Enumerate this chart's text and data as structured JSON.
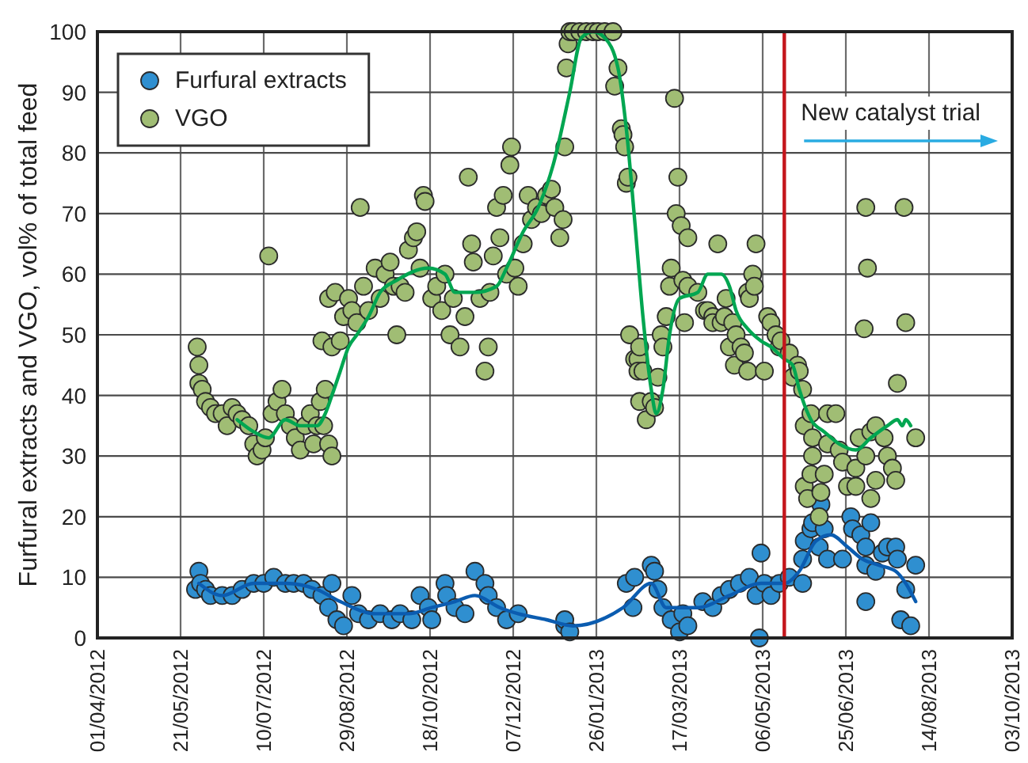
{
  "chart_data": {
    "type": "scatter",
    "ylabel": "Furfural extracts and VGO, vol% of total feed",
    "xlim": [
      "2012-04-01",
      "2013-10-03"
    ],
    "xticks": [
      {
        "value": "2012-04-01",
        "label": "01/04/2012"
      },
      {
        "value": "2012-05-21",
        "label": "21/05/2012"
      },
      {
        "value": "2012-07-10",
        "label": "10/07/2012"
      },
      {
        "value": "2012-08-29",
        "label": "29/08/2012"
      },
      {
        "value": "2012-10-18",
        "label": "18/10/2012"
      },
      {
        "value": "2012-12-07",
        "label": "07/12/2012"
      },
      {
        "value": "2013-01-26",
        "label": "26/01/2013"
      },
      {
        "value": "2013-03-17",
        "label": "17/03/2013"
      },
      {
        "value": "2013-05-06",
        "label": "06/05/2013"
      },
      {
        "value": "2013-06-25",
        "label": "25/06/2013"
      },
      {
        "value": "2013-08-14",
        "label": "14/08/2013"
      },
      {
        "value": "2013-10-03",
        "label": "03/10/2013"
      }
    ],
    "ylim": [
      0,
      100
    ],
    "yticks": [
      0,
      10,
      20,
      30,
      40,
      50,
      60,
      70,
      80,
      90,
      100
    ],
    "grid": true,
    "legend": "top left",
    "marker": "circle",
    "series": [
      {
        "name": "Furfural extracts",
        "color": "#2f8fd0",
        "x": [
          "2012-05-30",
          "2012-06-01",
          "2012-06-02",
          "2012-06-05",
          "2012-06-08",
          "2012-06-15",
          "2012-06-21",
          "2012-06-27",
          "2012-07-04",
          "2012-07-10",
          "2012-07-16",
          "2012-07-23",
          "2012-07-28",
          "2012-08-03",
          "2012-08-08",
          "2012-08-14",
          "2012-08-18",
          "2012-08-20",
          "2012-08-23",
          "2012-08-27",
          "2012-09-01",
          "2012-09-05",
          "2012-09-11",
          "2012-09-18",
          "2012-09-25",
          "2012-09-30",
          "2012-10-07",
          "2012-10-12",
          "2012-10-17",
          "2012-10-19",
          "2012-10-27",
          "2012-10-28",
          "2012-11-02",
          "2012-11-08",
          "2012-11-14",
          "2012-11-20",
          "2012-11-22",
          "2012-11-27",
          "2012-12-03",
          "2012-12-10",
          "2013-01-07",
          "2013-01-07",
          "2013-01-10",
          "2013-02-13",
          "2013-02-17",
          "2013-02-18",
          "2013-02-28",
          "2013-03-02",
          "2013-03-04",
          "2013-03-07",
          "2013-03-12",
          "2013-03-17",
          "2013-03-19",
          "2013-03-22",
          "2013-03-31",
          "2013-04-06",
          "2013-04-11",
          "2013-04-16",
          "2013-04-22",
          "2013-04-28",
          "2013-05-02",
          "2013-05-04",
          "2013-05-05",
          "2013-05-07",
          "2013-05-11",
          "2013-05-16",
          "2013-05-22",
          "2013-05-30",
          "2013-05-30",
          "2013-05-31",
          "2013-06-04",
          "2013-06-05",
          "2013-06-09",
          "2013-06-10",
          "2013-06-12",
          "2013-06-14",
          "2013-06-23",
          "2013-06-28",
          "2013-06-29",
          "2013-07-04",
          "2013-07-07",
          "2013-07-07",
          "2013-07-07",
          "2013-07-10",
          "2013-07-13",
          "2013-07-17",
          "2013-07-20",
          "2013-07-25",
          "2013-07-26",
          "2013-07-28",
          "2013-07-31",
          "2013-08-03",
          "2013-08-06"
        ],
        "values": [
          8,
          11,
          9,
          8,
          7,
          7,
          7,
          8,
          9,
          9,
          10,
          9,
          9,
          9,
          8,
          7,
          5,
          9,
          3,
          2,
          7,
          4,
          3,
          4,
          3,
          4,
          3,
          7,
          5,
          3,
          9,
          7,
          5,
          4,
          11,
          9,
          7,
          5,
          3,
          4,
          2,
          3,
          1,
          9,
          5,
          10,
          12,
          11,
          8,
          5,
          3,
          1,
          4,
          2,
          6,
          5,
          7,
          8,
          9,
          10,
          7,
          0,
          14,
          9,
          7,
          9,
          10,
          9,
          13,
          16,
          18,
          19,
          15,
          22,
          18,
          13,
          13,
          20,
          18,
          17,
          15,
          12,
          6,
          19,
          11,
          14,
          15,
          15,
          13,
          3,
          8,
          2,
          12
        ]
      },
      {
        "name": "VGO",
        "color": "#a0bd74",
        "x": [
          "2012-05-31",
          "2012-06-01",
          "2012-06-01",
          "2012-06-03",
          "2012-06-05",
          "2012-06-08",
          "2012-06-11",
          "2012-06-15",
          "2012-06-18",
          "2012-06-21",
          "2012-06-24",
          "2012-06-27",
          "2012-07-01",
          "2012-07-04",
          "2012-07-06",
          "2012-07-09",
          "2012-07-11",
          "2012-07-13",
          "2012-07-15",
          "2012-07-18",
          "2012-07-21",
          "2012-07-23",
          "2012-07-26",
          "2012-07-29",
          "2012-08-01",
          "2012-08-04",
          "2012-08-07",
          "2012-08-09",
          "2012-08-11",
          "2012-08-13",
          "2012-08-14",
          "2012-08-15",
          "2012-08-16",
          "2012-08-18",
          "2012-08-18",
          "2012-08-20",
          "2012-08-20",
          "2012-08-22",
          "2012-08-25",
          "2012-08-27",
          "2012-08-30",
          "2012-09-01",
          "2012-09-04",
          "2012-09-06",
          "2012-09-08",
          "2012-09-11",
          "2012-09-15",
          "2012-09-18",
          "2012-09-21",
          "2012-09-24",
          "2012-09-26",
          "2012-09-28",
          "2012-09-30",
          "2012-10-03",
          "2012-10-05",
          "2012-10-08",
          "2012-10-10",
          "2012-10-12",
          "2012-10-14",
          "2012-10-15",
          "2012-10-19",
          "2012-10-22",
          "2012-10-25",
          "2012-10-27",
          "2012-10-30",
          "2012-11-01",
          "2012-11-05",
          "2012-11-08",
          "2012-11-10",
          "2012-11-12",
          "2012-11-13",
          "2012-11-17",
          "2012-11-20",
          "2012-11-22",
          "2012-11-23",
          "2012-11-25",
          "2012-11-27",
          "2012-11-29",
          "2012-12-01",
          "2012-12-03",
          "2012-12-05",
          "2012-12-06",
          "2012-12-08",
          "2012-12-10",
          "2012-12-13",
          "2012-12-16",
          "2012-12-18",
          "2012-12-21",
          "2012-12-24",
          "2012-12-27",
          "2012-12-30",
          "2013-01-01",
          "2013-01-04",
          "2013-01-06",
          "2013-01-07",
          "2013-01-08",
          "2013-01-09",
          "2013-01-10",
          "2013-01-12",
          "2013-01-16",
          "2013-01-20",
          "2013-01-24",
          "2013-01-27",
          "2013-01-31",
          "2013-02-05",
          "2013-02-06",
          "2013-02-08",
          "2013-02-10",
          "2013-02-11",
          "2013-02-12",
          "2013-02-13",
          "2013-02-14",
          "2013-02-15",
          "2013-02-18",
          "2013-02-20",
          "2013-02-20",
          "2013-02-21",
          "2013-02-21",
          "2013-02-23",
          "2013-02-25",
          "2013-02-28",
          "2013-03-02",
          "2013-03-04",
          "2013-03-06",
          "2013-03-07",
          "2013-03-09",
          "2013-03-11",
          "2013-03-12",
          "2013-03-14",
          "2013-03-15",
          "2013-03-16",
          "2013-03-18",
          "2013-03-19",
          "2013-03-20",
          "2013-03-22",
          "2013-03-22",
          "2013-03-28",
          "2013-04-01",
          "2013-04-03",
          "2013-04-06",
          "2013-04-06",
          "2013-04-09",
          "2013-04-11",
          "2013-04-13",
          "2013-04-14",
          "2013-04-16",
          "2013-04-18",
          "2013-04-19",
          "2013-04-20",
          "2013-04-23",
          "2013-04-25",
          "2013-04-27",
          "2013-04-27",
          "2013-04-28",
          "2013-04-30",
          "2013-05-01",
          "2013-05-02",
          "2013-05-07",
          "2013-05-09",
          "2013-05-11",
          "2013-05-14",
          "2013-05-16",
          "2013-05-17",
          "2013-05-22",
          "2013-05-24",
          "2013-05-27",
          "2013-05-28",
          "2013-05-30",
          "2013-05-31",
          "2013-05-31",
          "2013-06-02",
          "2013-06-04",
          "2013-06-04",
          "2013-06-05",
          "2013-06-05",
          "2013-06-09",
          "2013-06-10",
          "2013-06-12",
          "2013-06-14",
          "2013-06-14",
          "2013-06-19",
          "2013-06-21",
          "2013-06-23",
          "2013-06-26",
          "2013-07-01",
          "2013-07-01",
          "2013-07-03",
          "2013-07-06",
          "2013-07-07",
          "2013-07-07",
          "2013-07-08",
          "2013-07-10",
          "2013-07-10",
          "2013-07-13",
          "2013-07-13",
          "2013-07-18",
          "2013-07-20",
          "2013-07-23",
          "2013-07-25",
          "2013-07-26",
          "2013-07-30",
          "2013-07-31",
          "2013-08-06"
        ],
        "values": [
          48,
          45,
          42,
          41,
          39,
          38,
          37,
          37,
          35,
          38,
          37,
          36,
          35,
          32,
          30,
          31,
          33,
          63,
          37,
          39,
          41,
          37,
          35,
          33,
          31,
          35,
          37,
          32,
          35,
          39,
          49,
          35,
          41,
          32,
          56,
          30,
          48,
          57,
          49,
          53,
          56,
          54,
          52,
          71,
          58,
          54,
          61,
          56,
          60,
          62,
          58,
          50,
          58,
          57,
          64,
          66,
          67,
          61,
          73,
          72,
          56,
          58,
          54,
          60,
          50,
          56,
          48,
          53,
          76,
          65,
          62,
          56,
          44,
          48,
          57,
          63,
          71,
          66,
          73,
          60,
          78,
          81,
          61,
          58,
          65,
          73,
          69,
          71,
          70,
          73,
          74,
          71,
          66,
          69,
          81,
          94,
          98,
          100,
          100,
          100,
          100,
          100,
          100,
          100,
          100,
          91,
          94,
          84,
          83,
          81,
          75,
          76,
          50,
          46,
          46,
          44,
          48,
          39,
          44,
          36,
          39,
          38,
          43,
          50,
          48,
          53,
          58,
          61,
          89,
          70,
          76,
          68,
          59,
          52,
          66,
          58,
          57,
          54,
          54,
          53,
          52,
          65,
          52,
          53,
          56,
          48,
          52,
          45,
          50,
          48,
          47,
          57,
          44,
          56,
          60,
          58,
          65,
          44,
          53,
          52,
          50,
          48,
          49,
          47,
          43,
          45,
          44,
          41,
          35,
          25,
          23,
          37,
          27,
          33,
          30,
          20,
          24,
          27,
          37,
          32,
          37,
          31,
          29,
          25,
          28,
          25,
          33,
          51,
          71,
          30,
          61,
          34,
          23,
          35,
          26,
          33,
          30,
          28,
          26,
          42,
          71,
          52,
          33
        ]
      },
      {
        "type": "line",
        "marker": "none",
        "color": "#00a651",
        "x": [
          "2012-06-24",
          "2012-07-04",
          "2012-07-13",
          "2012-07-23",
          "2012-08-01",
          "2012-08-11",
          "2012-08-16",
          "2012-08-20",
          "2012-08-25",
          "2012-08-30",
          "2012-09-04",
          "2012-09-11",
          "2012-09-18",
          "2012-09-28",
          "2012-10-17",
          "2012-10-27",
          "2012-11-02",
          "2012-11-14",
          "2012-11-27",
          "2012-12-03",
          "2012-12-13",
          "2012-12-22",
          "2012-12-31",
          "2013-01-10",
          "2013-01-17",
          "2013-01-24",
          "2013-01-31",
          "2013-02-08",
          "2013-02-13",
          "2013-02-18",
          "2013-02-23",
          "2013-02-28",
          "2013-03-03",
          "2013-03-07",
          "2013-03-11",
          "2013-03-17",
          "2013-03-28",
          "2013-04-03",
          "2013-04-11",
          "2013-04-16",
          "2013-04-20",
          "2013-04-27",
          "2013-05-05",
          "2013-05-11",
          "2013-05-19",
          "2013-05-24",
          "2013-05-28",
          "2013-06-04",
          "2013-06-12",
          "2013-06-21",
          "2013-07-01",
          "2013-07-10",
          "2013-07-20",
          "2013-07-26",
          "2013-07-29",
          "2013-07-31",
          "2013-08-03"
        ],
        "values": [
          36,
          34,
          33,
          36,
          35,
          35,
          37,
          40,
          44,
          48,
          50,
          53,
          57,
          59,
          61,
          60,
          57,
          57,
          58,
          61,
          67,
          71,
          78,
          90,
          99,
          100,
          99,
          94,
          84,
          69,
          53,
          41,
          37,
          41,
          50,
          56,
          57,
          60,
          60,
          58,
          54,
          51,
          49,
          48,
          46,
          45,
          41,
          36,
          34,
          32,
          31,
          33,
          35,
          36,
          35,
          36,
          35
        ]
      },
      {
        "type": "line",
        "marker": "none",
        "color": "#0b5cb0",
        "x": [
          "2012-06-01",
          "2012-06-15",
          "2012-07-04",
          "2012-07-23",
          "2012-08-11",
          "2012-08-25",
          "2012-09-15",
          "2012-10-05",
          "2012-10-19",
          "2012-11-02",
          "2012-11-14",
          "2012-11-29",
          "2012-12-10",
          "2012-12-27",
          "2013-01-12",
          "2013-02-11",
          "2013-02-28",
          "2013-03-09",
          "2013-03-28",
          "2013-04-16",
          "2013-05-05",
          "2013-05-19",
          "2013-05-28",
          "2013-06-07",
          "2013-06-16",
          "2013-06-26",
          "2013-07-05",
          "2013-07-15",
          "2013-07-25",
          "2013-07-31",
          "2013-08-06"
        ],
        "values": [
          9,
          7,
          9,
          9,
          8,
          6,
          4,
          4,
          5,
          6,
          7,
          5,
          4,
          3,
          2,
          5,
          9,
          5,
          5,
          7,
          9,
          9,
          11,
          16,
          17,
          15,
          13,
          12,
          11,
          9,
          6
        ]
      }
    ],
    "ref_lines": [
      {
        "axis": "x",
        "value": "2013-05-19",
        "color": "#c4161c"
      }
    ],
    "annotations": [
      "New catalyst trial"
    ]
  }
}
